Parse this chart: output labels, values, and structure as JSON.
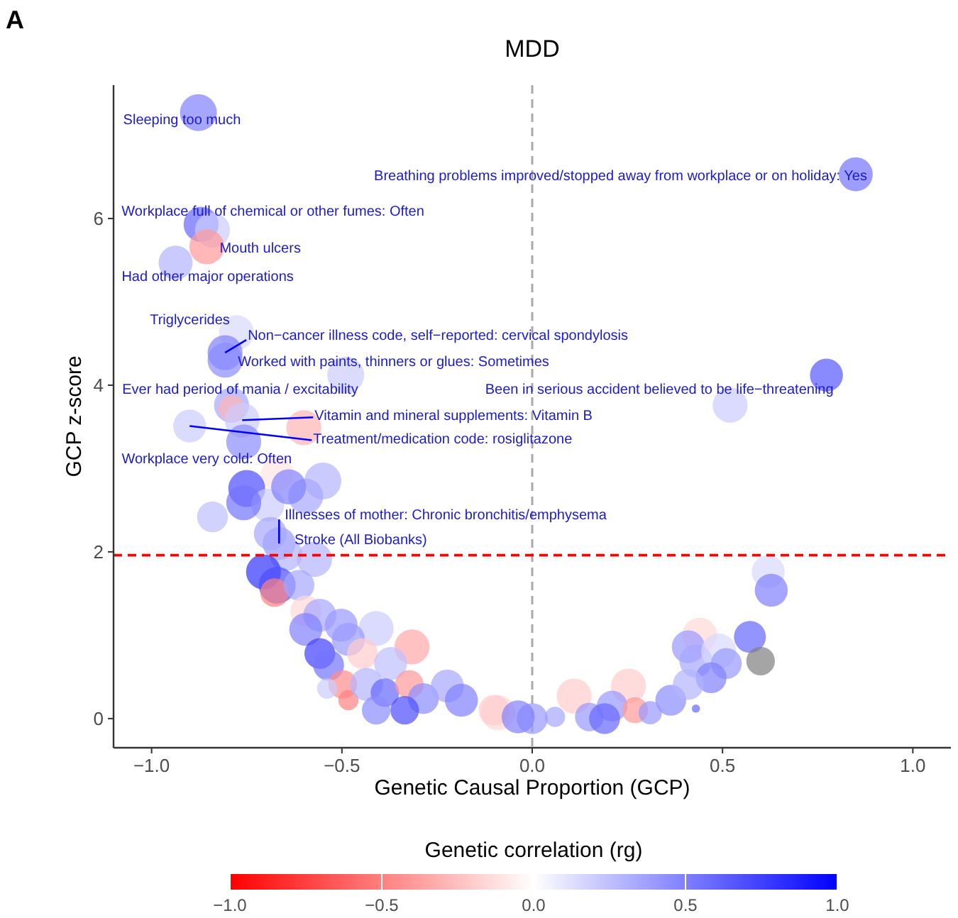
{
  "chart_data": {
    "type": "bubble",
    "title": "MDD",
    "xlabel": "Genetic Causal Proportion (GCP)",
    "ylabel": "GCP z-score",
    "clabel": "Genetic correlation (rg)",
    "xlim": [
      -1.1,
      1.1
    ],
    "ylim": [
      -0.35,
      7.6
    ],
    "xticks": [
      {
        "value": -1,
        "label": "−1.0"
      },
      {
        "value": -0.5,
        "label": "−0.5"
      },
      {
        "value": 0,
        "label": "0.0"
      },
      {
        "value": 0.5,
        "label": "0.5"
      },
      {
        "value": 1,
        "label": "1.0"
      }
    ],
    "yticks": [
      0,
      2,
      4,
      6
    ],
    "clim": [
      -1,
      1
    ],
    "cticks": [
      {
        "value": -1,
        "label": "−1.0"
      },
      {
        "value": -0.5,
        "label": "−0.5"
      },
      {
        "value": 0,
        "label": "0.0"
      },
      {
        "value": 0.5,
        "label": "0.5"
      },
      {
        "value": 1,
        "label": "1.0"
      }
    ],
    "grid": false,
    "ref_lines": [
      {
        "axis": "y",
        "value": 1.96,
        "color": "#ff0000",
        "line_style": "dashed"
      },
      {
        "axis": "x",
        "value": 0,
        "color": "#aaaaaa",
        "line_style": "dashed"
      }
    ],
    "series": [
      {
        "x": [
          -0.877,
          0.85,
          -0.87,
          -0.84,
          -0.855,
          -0.937,
          -0.777,
          -0.807,
          -0.807,
          -0.49,
          -0.79,
          -0.79,
          -0.762,
          -0.6,
          -0.9,
          -0.758,
          0.773,
          0.52,
          -0.665,
          -0.647,
          0.62,
          0.628,
          0.572,
          0.6,
          0.44,
          0.41,
          0.43,
          0.49,
          0.51,
          0.47,
          0.43,
          0.364,
          0.41,
          0.253,
          0.21,
          0.27,
          0.31,
          0.11,
          0.15,
          0.06,
          0,
          -0.09,
          0.19,
          -0.55,
          -0.595,
          -0.67,
          -0.75,
          -0.695,
          -0.758,
          -0.84,
          -0.688,
          -0.572,
          -0.706,
          -0.67,
          -0.677,
          -0.613,
          -0.595,
          -0.558,
          -0.595,
          -0.502,
          -0.41,
          -0.483,
          -0.558,
          -0.535,
          -0.446,
          -0.316,
          -0.372,
          -0.498,
          -0.483,
          -0.539,
          -0.435,
          -0.387,
          -0.323,
          -0.286,
          -0.223,
          -0.186,
          -0.1,
          -0.037,
          -0.335,
          -0.41,
          -0.64
        ],
        "values": [
          7.27,
          6.53,
          5.93,
          5.86,
          5.66,
          5.47,
          4.63,
          4.39,
          4.3,
          4.12,
          3.76,
          3.72,
          3.58,
          3.49,
          3.51,
          3.32,
          4.12,
          3.76,
          2.1,
          1.97,
          1.76,
          1.54,
          0.98,
          0.69,
          1.0,
          0.86,
          0.69,
          0.81,
          0.66,
          0.49,
          0.12,
          0.22,
          0.41,
          0.39,
          0.15,
          0.1,
          0.07,
          0.27,
          0.02,
          0.02,
          0,
          0.07,
          0,
          2.85,
          2.67,
          2.93,
          2.76,
          2.56,
          2.59,
          2.42,
          2.22,
          1.91,
          1.76,
          1.6,
          1.51,
          1.6,
          1.29,
          1.24,
          1.07,
          1.12,
          1.08,
          0.95,
          0.78,
          0.64,
          0.78,
          0.86,
          0.66,
          0.41,
          0.22,
          0.36,
          0.41,
          0.31,
          0.41,
          0.24,
          0.39,
          0.22,
          0.1,
          0.02,
          0.1,
          0.1,
          2.78
        ],
        "cvalues": [
          0.5,
          0.55,
          0.6,
          0.2,
          -0.4,
          0.3,
          0.15,
          0.5,
          0.45,
          0.2,
          0.35,
          -0.3,
          0.2,
          -0.3,
          0.2,
          0.45,
          0.65,
          0.2,
          0.4,
          0.3,
          0.15,
          0.5,
          0.6,
          null,
          -0.15,
          0.4,
          0.35,
          0.15,
          0.4,
          0.5,
          0.6,
          0.45,
          0.3,
          -0.2,
          0.4,
          -0.4,
          0.4,
          -0.2,
          0.4,
          0.35,
          0.4,
          -0.15,
          0.6,
          0.3,
          0.35,
          -0.1,
          0.7,
          0.2,
          0.55,
          0.25,
          0.35,
          0.3,
          0.8,
          0.7,
          -0.5,
          0.35,
          -0.15,
          0.35,
          0.5,
          0.4,
          0.2,
          0.4,
          0.75,
          0.55,
          -0.2,
          -0.35,
          0.25,
          -0.45,
          -0.5,
          0.2,
          0.3,
          0.6,
          -0.4,
          0.45,
          0.35,
          0.5,
          -0.2,
          0.5,
          0.7,
          0.45,
          0.5
        ],
        "sizes": [
          1,
          0.85,
          0.9,
          0.9,
          0.9,
          0.85,
          0.9,
          0.9,
          0.9,
          1,
          0.9,
          0.5,
          0.9,
          0.9,
          0.8,
          0.9,
          0.8,
          0.9,
          0.8,
          0.8,
          0.8,
          0.8,
          0.75,
          0.6,
          0.9,
          0.8,
          0.8,
          0.9,
          0.7,
          0.7,
          0.05,
          0.7,
          0.7,
          0.9,
          0.7,
          0.5,
          0.4,
          0.9,
          0.6,
          0.3,
          0.7,
          0.9,
          0.7,
          1,
          0.9,
          0.8,
          1,
          0.8,
          0.9,
          0.7,
          0.8,
          0.9,
          0.9,
          1,
          0.6,
          0.7,
          0.7,
          0.8,
          0.8,
          0.8,
          0.9,
          0.8,
          0.7,
          0.7,
          0.7,
          0.9,
          0.8,
          0.6,
          0.3,
          0.3,
          0.8,
          0.6,
          0.6,
          0.7,
          0.8,
          0.8,
          0.7,
          0.8,
          0.6,
          0.6,
          0.9
        ]
      }
    ],
    "annotations": [
      "A",
      {
        "text": "Sleeping too much",
        "x": -0.877,
        "y": 7.27
      },
      {
        "text": "Breathing problems improved/stopped away from workplace or on holiday: Yes",
        "x": 0.85,
        "y": 6.53
      },
      {
        "text": "Workplace full of chemical or other fumes: Often",
        "x": -0.87,
        "y": 5.93
      },
      {
        "text": "Mouth ulcers",
        "x": -0.855,
        "y": 5.66
      },
      {
        "text": "Had other major operations",
        "x": -0.937,
        "y": 5.47
      },
      {
        "text": "Triglycerides",
        "x": -0.777,
        "y": 4.63
      },
      {
        "text": "Non−cancer illness code, self−reported: cervical spondylosis",
        "x": -0.807,
        "y": 4.39
      },
      {
        "text": "Worked with paints, thinners or glues: Sometimes",
        "x": -0.807,
        "y": 4.3
      },
      {
        "text": "Ever had period of mania / excitability",
        "x": -0.79,
        "y": 3.76
      },
      {
        "text": "Vitamin and mineral supplements: Vitamin B",
        "x": -0.762,
        "y": 3.58
      },
      {
        "text": "Treatment/medication code: rosiglitazone",
        "x": -0.9,
        "y": 3.51
      },
      {
        "text": "Workplace very cold: Often",
        "x": -0.758,
        "y": 3.32
      },
      {
        "text": "Been in serious accident believed to be life−threatening",
        "x": 0.773,
        "y": 4.12
      },
      {
        "text": "Illnesses of mother: Chronic bronchitis/emphysema",
        "x": -0.665,
        "y": 2.1
      },
      {
        "text": "Stroke (All Biobanks)",
        "x": -0.647,
        "y": 1.97
      }
    ]
  }
}
